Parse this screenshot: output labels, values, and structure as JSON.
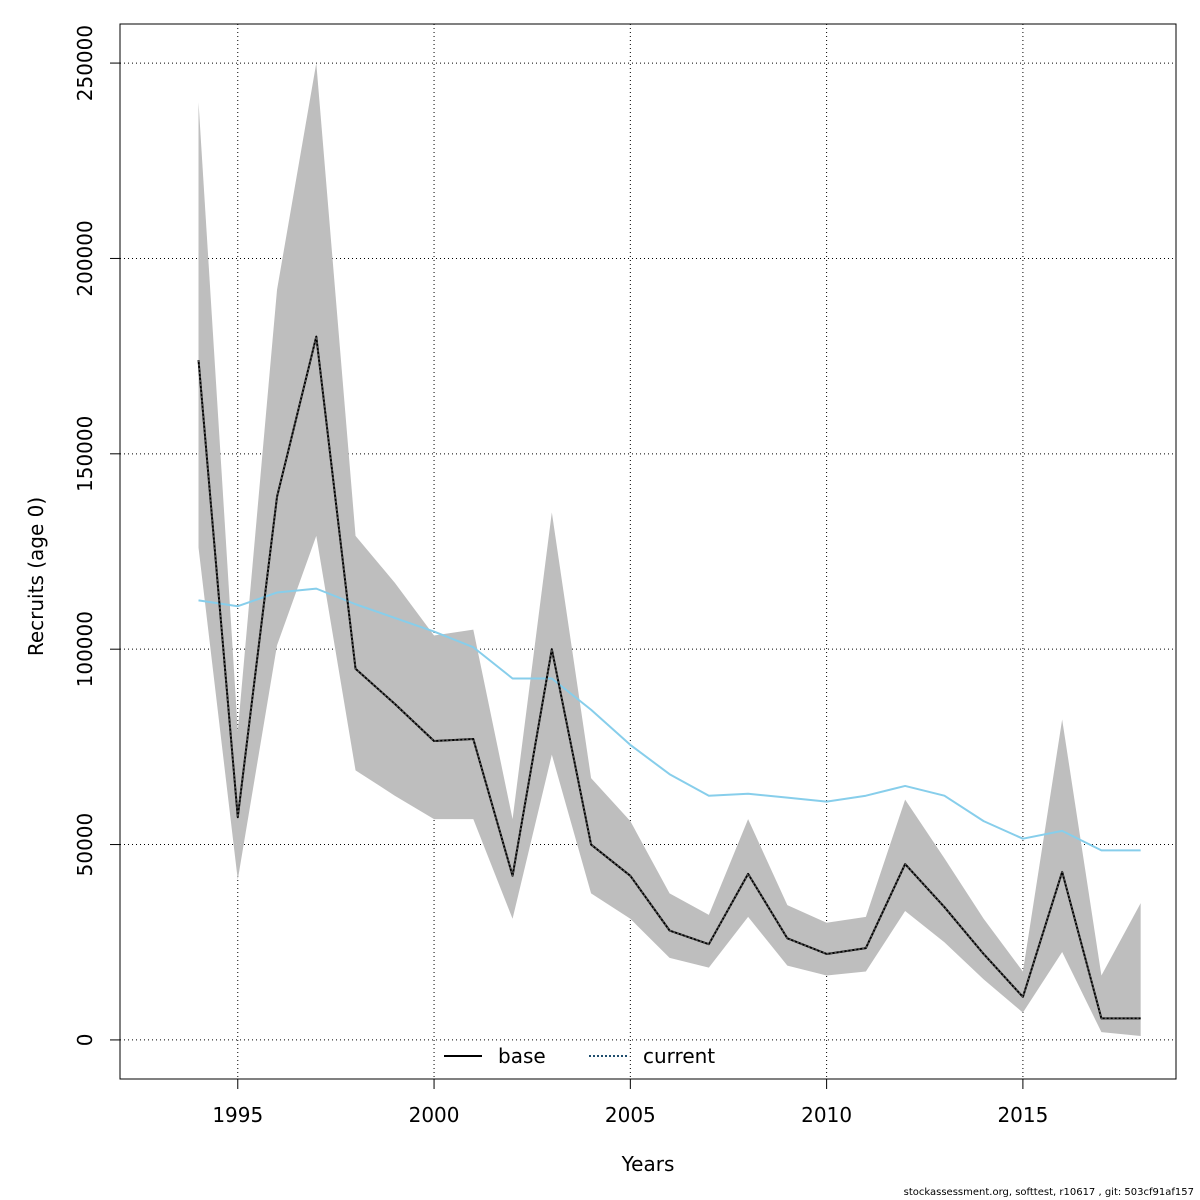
{
  "chart_data": {
    "type": "line",
    "xlabel": "Years",
    "ylabel": "Recruits (age 0)",
    "xlim": [
      1992.0,
      2018.9
    ],
    "ylim": [
      -10000,
      260000
    ],
    "x_ticks": [
      1995,
      2000,
      2005,
      2010,
      2015
    ],
    "y_ticks": [
      0,
      50000,
      100000,
      150000,
      200000,
      250000
    ],
    "x_tick_labels": [
      "1995",
      "2000",
      "2005",
      "2010",
      "2015"
    ],
    "y_tick_labels": [
      "0",
      "50000",
      "100000",
      "150000",
      "200000",
      "250000"
    ],
    "grid": true,
    "legend_position": "bottom-center",
    "years": [
      1994,
      1995,
      1996,
      1997,
      1998,
      1999,
      2000,
      2001,
      2002,
      2003,
      2004,
      2005,
      2006,
      2007,
      2008,
      2009,
      2010,
      2011,
      2012,
      2013,
      2014,
      2015,
      2016,
      2017,
      2018
    ],
    "series": [
      {
        "name": "base",
        "color": "#000000",
        "style": "solid",
        "values": [
          174000,
          57000,
          139000,
          180000,
          95000,
          86000,
          76500,
          77000,
          42000,
          100000,
          50000,
          42000,
          28000,
          24500,
          42500,
          26000,
          22000,
          23500,
          45000,
          34000,
          22000,
          11000,
          43000,
          5500,
          5500
        ],
        "lower": [
          126000,
          41000,
          101000,
          129000,
          69000,
          62500,
          56500,
          56500,
          31000,
          73000,
          37500,
          31000,
          21000,
          18500,
          31500,
          19000,
          16500,
          17500,
          33000,
          25000,
          15500,
          7000,
          22500,
          2000,
          1000
        ],
        "upper": [
          240000,
          79000,
          192000,
          250000,
          129000,
          117000,
          103500,
          105000,
          56500,
          135000,
          67000,
          56000,
          37500,
          32000,
          56500,
          34500,
          30000,
          31500,
          61500,
          46500,
          31000,
          17500,
          82000,
          16500,
          35000
        ]
      },
      {
        "name": "current",
        "color": "#1a1a1a",
        "style": "dotted",
        "values": [
          174000,
          57000,
          139000,
          180000,
          95000,
          86000,
          76500,
          77000,
          42000,
          100000,
          50000,
          42000,
          28000,
          24500,
          42500,
          26000,
          22000,
          23500,
          45000,
          34000,
          22000,
          11000,
          43000,
          5500,
          5500
        ]
      },
      {
        "name": "",
        "color": "#87ceeb",
        "style": "solid",
        "values": [
          112500,
          111000,
          114500,
          115500,
          111500,
          108000,
          104500,
          100500,
          92500,
          92500,
          84500,
          75500,
          68000,
          62500,
          63000,
          62000,
          61000,
          62500,
          65000,
          62500,
          56000,
          51500,
          53500,
          48500,
          48500
        ]
      }
    ],
    "ci_fill_color": "#bebebe"
  },
  "legend": {
    "items": [
      {
        "label": "base",
        "color": "#000000",
        "style": "solid"
      },
      {
        "label": "current",
        "color": "#1a1a1a",
        "style": "dotted"
      }
    ]
  },
  "footer": {
    "text": "stockassessment.org, softtest, r10617 , git: 503cf91af157"
  }
}
